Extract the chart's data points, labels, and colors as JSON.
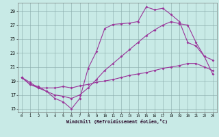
{
  "xlabel": "Windchill (Refroidissement éolien,°C)",
  "xlim": [
    -0.5,
    23.5
  ],
  "ylim": [
    14.5,
    30.2
  ],
  "xticks": [
    0,
    1,
    2,
    3,
    4,
    5,
    6,
    7,
    8,
    9,
    10,
    11,
    12,
    13,
    14,
    15,
    16,
    17,
    18,
    19,
    20,
    21,
    22,
    23
  ],
  "yticks": [
    15,
    17,
    19,
    21,
    23,
    25,
    27,
    29
  ],
  "bg_color": "#c8eae6",
  "line_color": "#993399",
  "grid_color": "#88aaaa",
  "line1_x": [
    0,
    1,
    2,
    3,
    4,
    5,
    6,
    7,
    8,
    9,
    10,
    11,
    12,
    13,
    14,
    15,
    16,
    17,
    18,
    19,
    20,
    21,
    22,
    23
  ],
  "line1_y": [
    19.5,
    18.5,
    18.0,
    17.5,
    16.5,
    16.0,
    15.0,
    16.5,
    20.8,
    23.2,
    26.5,
    27.1,
    27.2,
    27.3,
    27.5,
    29.6,
    29.2,
    29.4,
    28.5,
    27.5,
    24.5,
    24.0,
    22.5,
    20.0
  ],
  "line2_x": [
    0,
    1,
    2,
    3,
    4,
    5,
    6,
    7,
    8,
    9,
    10,
    11,
    12,
    13,
    14,
    15,
    16,
    17,
    18,
    19,
    20,
    21,
    22,
    23
  ],
  "line2_y": [
    19.5,
    18.5,
    18.2,
    17.5,
    17.0,
    16.8,
    16.5,
    17.0,
    18.0,
    19.2,
    20.5,
    21.5,
    22.5,
    23.5,
    24.5,
    25.5,
    26.3,
    27.0,
    27.5,
    27.2,
    27.0,
    24.5,
    22.5,
    22.0
  ],
  "line3_x": [
    0,
    1,
    2,
    3,
    4,
    5,
    6,
    7,
    8,
    9,
    10,
    11,
    12,
    13,
    14,
    15,
    16,
    17,
    18,
    19,
    20,
    21,
    22,
    23
  ],
  "line3_y": [
    19.5,
    18.8,
    18.0,
    18.0,
    18.0,
    18.2,
    18.0,
    18.3,
    18.5,
    18.8,
    19.0,
    19.2,
    19.5,
    19.8,
    20.0,
    20.2,
    20.5,
    20.8,
    21.0,
    21.2,
    21.5,
    21.5,
    21.0,
    20.5
  ]
}
